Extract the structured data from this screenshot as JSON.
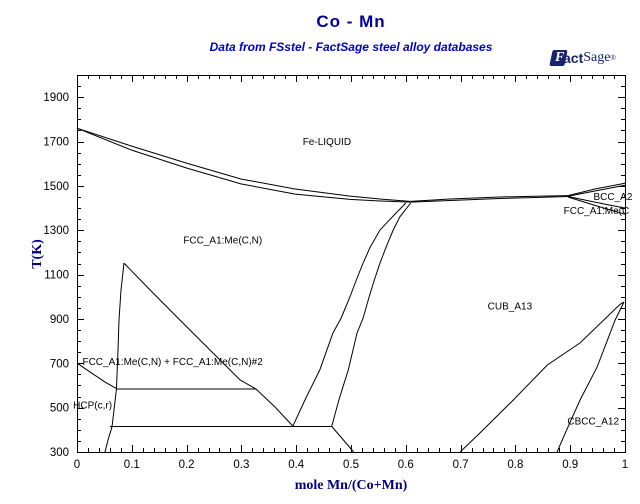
{
  "header": {
    "title": "Co - Mn",
    "subtitle": "Data from FSstel - FactSage steel alloy databases"
  },
  "logo": {
    "f": "F",
    "act": "act",
    "sage": "Sage",
    "reg": "®"
  },
  "colors": {
    "title": "#000099",
    "subtitle": "#0000CC",
    "axis_title": "#000080",
    "line": "#000000",
    "logo_navy": "#16246B",
    "background": "#FFFFFF"
  },
  "chart_data": {
    "type": "line",
    "title": "Co - Mn",
    "subtitle": "Data from FSstel - FactSage steel alloy databases",
    "xlabel": "mole Mn/(Co+Mn)",
    "ylabel": "T(K)",
    "xlim": [
      0,
      1
    ],
    "ylim": [
      300,
      2000
    ],
    "grid": false,
    "legend": "none",
    "x_tick_labels": [
      "0",
      "0.1",
      "0.2",
      "0.3",
      "0.4",
      "0.5",
      "0.6",
      "0.7",
      "0.8",
      "0.9",
      "1"
    ],
    "x_major_step": 0.1,
    "x_minor_step": 0.02,
    "y_tick_labels": [
      "300",
      "500",
      "700",
      "900",
      "1100",
      "1300",
      "1500",
      "1700",
      "1900"
    ],
    "y_major_step": 200,
    "y_minor_step": 50,
    "series": [
      {
        "name": "liquidus-co",
        "points": [
          [
            0,
            1760
          ],
          [
            0.099,
            1680
          ],
          [
            0.199,
            1603
          ],
          [
            0.299,
            1531
          ],
          [
            0.398,
            1486
          ],
          [
            0.498,
            1454
          ],
          [
            0.553,
            1441
          ],
          [
            0.608,
            1430
          ]
        ]
      },
      {
        "name": "solidus-co",
        "points": [
          [
            0,
            1760
          ],
          [
            0.099,
            1662
          ],
          [
            0.199,
            1581
          ],
          [
            0.299,
            1509
          ],
          [
            0.398,
            1463
          ],
          [
            0.498,
            1439
          ],
          [
            0.553,
            1432
          ],
          [
            0.608,
            1427
          ]
        ]
      },
      {
        "name": "liquidus-mid-upper",
        "points": [
          [
            0.608,
            1430
          ],
          [
            0.681,
            1441
          ],
          [
            0.772,
            1450
          ],
          [
            0.845,
            1454
          ],
          [
            0.896,
            1456
          ]
        ]
      },
      {
        "name": "solidus-mid-lower",
        "points": [
          [
            0.608,
            1427
          ],
          [
            0.681,
            1434
          ],
          [
            0.772,
            1443
          ],
          [
            0.845,
            1448
          ],
          [
            0.896,
            1452
          ]
        ]
      },
      {
        "name": "liquidus-mn",
        "points": [
          [
            0.896,
            1456
          ],
          [
            0.945,
            1486
          ],
          [
            1.0,
            1512
          ]
        ]
      },
      {
        "name": "bcc-solidus-mn",
        "points": [
          [
            0.896,
            1453
          ],
          [
            0.945,
            1477
          ],
          [
            1.0,
            1503
          ]
        ]
      },
      {
        "name": "bcc-fcc-upper",
        "points": [
          [
            0.896,
            1452
          ],
          [
            0.945,
            1427
          ],
          [
            1.0,
            1400
          ]
        ]
      },
      {
        "name": "bcc-fcc-lower",
        "points": [
          [
            0.896,
            1450
          ],
          [
            0.945,
            1412
          ],
          [
            1.0,
            1372
          ]
        ]
      },
      {
        "name": "fcc-cub-left",
        "points": [
          [
            0.6,
            1423
          ],
          [
            0.577,
            1364
          ],
          [
            0.553,
            1301
          ],
          [
            0.535,
            1224
          ],
          [
            0.522,
            1152
          ],
          [
            0.509,
            1071
          ],
          [
            0.498,
            999
          ],
          [
            0.482,
            904
          ],
          [
            0.467,
            836
          ],
          [
            0.443,
            670
          ],
          [
            0.416,
            535
          ],
          [
            0.394,
            417
          ]
        ]
      },
      {
        "name": "fcc-cub-right",
        "points": [
          [
            0.609,
            1423
          ],
          [
            0.589,
            1360
          ],
          [
            0.577,
            1301
          ],
          [
            0.564,
            1224
          ],
          [
            0.553,
            1152
          ],
          [
            0.542,
            1071
          ],
          [
            0.533,
            999
          ],
          [
            0.522,
            904
          ],
          [
            0.511,
            836
          ],
          [
            0.495,
            670
          ],
          [
            0.478,
            535
          ],
          [
            0.465,
            417
          ]
        ]
      },
      {
        "name": "eutectoid-horizontal",
        "points": [
          [
            0.06,
            415
          ],
          [
            0.465,
            415
          ]
        ]
      },
      {
        "name": "cub-boundary-below-eutectoid",
        "points": [
          [
            0.465,
            415
          ],
          [
            0.505,
            300
          ]
        ]
      },
      {
        "name": "miscibility-gap-left",
        "points": [
          [
            0.0858,
            1152
          ],
          [
            0.0803,
            1031
          ],
          [
            0.0766,
            895
          ],
          [
            0.0748,
            760
          ],
          [
            0.073,
            647
          ],
          [
            0.0721,
            586
          ]
        ]
      },
      {
        "name": "miscibility-gap-right",
        "points": [
          [
            0.0858,
            1152
          ],
          [
            0.1332,
            1031
          ],
          [
            0.188,
            895
          ],
          [
            0.2427,
            760
          ],
          [
            0.2974,
            625
          ],
          [
            0.3266,
            584
          ],
          [
            0.3613,
            503
          ],
          [
            0.394,
            417
          ]
        ]
      },
      {
        "name": "hcp-fcc-transus",
        "points": [
          [
            0,
            701
          ],
          [
            0.0237,
            661
          ],
          [
            0.0511,
            615
          ],
          [
            0.0721,
            586
          ]
        ]
      },
      {
        "name": "hcp-horizontal",
        "points": [
          [
            0.0721,
            584
          ],
          [
            0.3266,
            584
          ]
        ]
      },
      {
        "name": "hcp-right-boundary",
        "points": [
          [
            0.0721,
            586
          ],
          [
            0.0675,
            490
          ],
          [
            0.0639,
            413
          ],
          [
            0.0566,
            354
          ],
          [
            0.0511,
            300
          ]
        ]
      },
      {
        "name": "cub-cbcc-left",
        "points": [
          [
            0.998,
            976
          ],
          [
            0.991,
            966
          ],
          [
            0.918,
            792
          ],
          [
            0.858,
            692
          ],
          [
            0.796,
            534
          ],
          [
            0.735,
            385
          ],
          [
            0.699,
            300
          ]
        ]
      },
      {
        "name": "cub-cbcc-right",
        "points": [
          [
            0.998,
            976
          ],
          [
            0.982,
            895
          ],
          [
            0.949,
            683
          ],
          [
            0.918,
            535
          ],
          [
            0.891,
            385
          ],
          [
            0.876,
            300
          ]
        ]
      }
    ],
    "region_labels": [
      {
        "text": "Fe-LIQUID",
        "x": 0.456,
        "T": 1700,
        "anchor": "middle"
      },
      {
        "text": "FCC_A1:Me(C,N)",
        "x": 0.266,
        "T": 1255,
        "anchor": "middle"
      },
      {
        "text": "BCC_A2",
        "x": 0.978,
        "T": 1452,
        "anchor": "middle"
      },
      {
        "text": "FCC_A1:Me(C",
        "x": 0.888,
        "T": 1388,
        "anchor": "start"
      },
      {
        "text": "CUB_A13",
        "x": 0.79,
        "T": 958,
        "anchor": "middle"
      },
      {
        "text": "CBCC_A12",
        "x": 0.942,
        "T": 440,
        "anchor": "middle"
      },
      {
        "text": "FCC_A1:Me(C,N) + FCC_A1:Me(C,N)#2",
        "x": 0.01,
        "T": 707,
        "anchor": "start"
      },
      {
        "text": "HCP(c,r)",
        "x": -0.007,
        "T": 512,
        "anchor": "start"
      }
    ]
  }
}
